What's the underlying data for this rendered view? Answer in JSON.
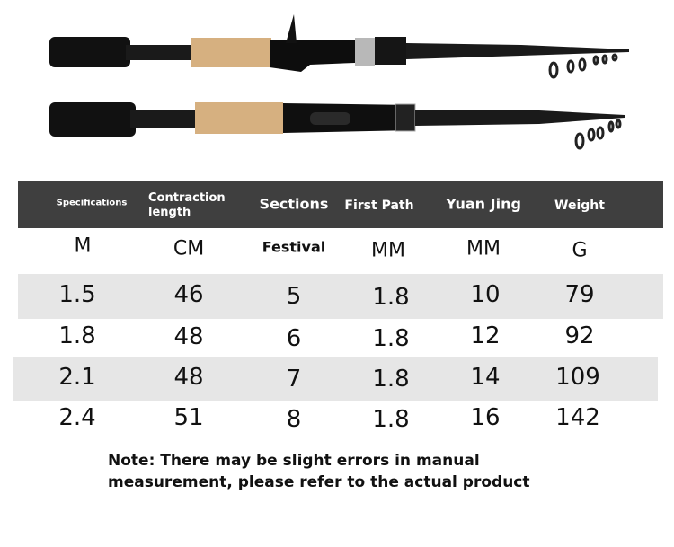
{
  "table": {
    "headers": [
      "Specifications",
      "Contraction length",
      "Sections",
      "First Path",
      "Yuan Jing",
      "Weight"
    ],
    "units": [
      "M",
      "CM",
      "Festival",
      "MM",
      "MM",
      "G"
    ],
    "rows": [
      [
        "1.5",
        "46",
        "5",
        "1.8",
        "10",
        "79"
      ],
      [
        "1.8",
        "48",
        "6",
        "1.8",
        "12",
        "92"
      ],
      [
        "2.1",
        "48",
        "7",
        "1.8",
        "14",
        "109"
      ],
      [
        "2.4",
        "51",
        "8",
        "1.8",
        "16",
        "142"
      ]
    ]
  },
  "note": {
    "line1": "Note: There may be slight errors in manual",
    "line2": "measurement, please refer to the actual product"
  },
  "colors": {
    "header_bg": "#3f3f3f",
    "stripe": "#e6e6e6",
    "cork": "#d9b383"
  }
}
